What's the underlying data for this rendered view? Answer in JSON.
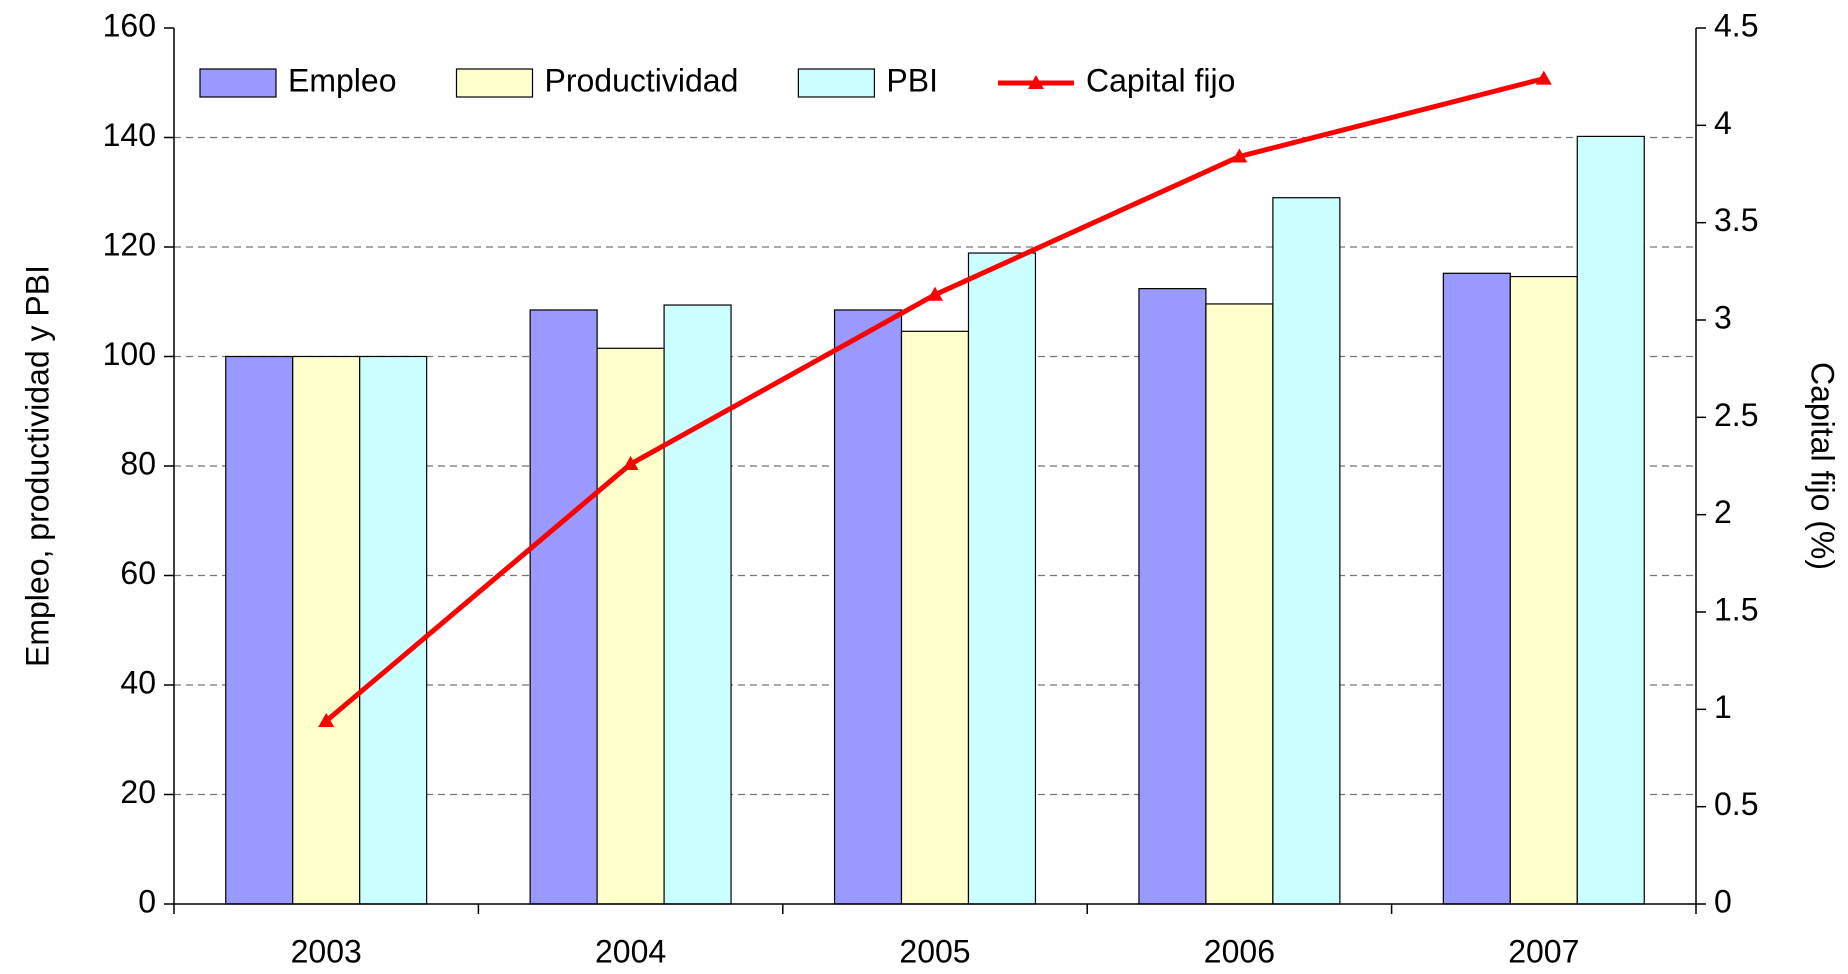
{
  "chart_data": {
    "type": "bar",
    "categories": [
      "2003",
      "2004",
      "2005",
      "2006",
      "2007"
    ],
    "series": [
      {
        "name": "Empleo",
        "color": "#9999ff",
        "values": [
          100,
          108.5,
          108.5,
          112.4,
          115.2
        ]
      },
      {
        "name": "Productividad",
        "color": "#ffffcc",
        "values": [
          100,
          101.5,
          104.6,
          109.6,
          114.6
        ]
      },
      {
        "name": "PBI",
        "color": "#ccffff",
        "values": [
          100,
          109.4,
          118.9,
          129,
          140.2
        ]
      },
      {
        "name": "Capital fijo",
        "color": "#ff0000",
        "type": "line",
        "axis": "y2",
        "values": [
          0.94,
          2.26,
          3.13,
          3.84,
          4.24
        ]
      }
    ],
    "ylabel": "Empleo, productividad y PBI",
    "y2label": "Capital fijo (%)",
    "ylim": [
      0,
      160
    ],
    "yticks": [
      0,
      20,
      40,
      60,
      80,
      100,
      120,
      140,
      160
    ],
    "y2lim": [
      0,
      4.5
    ],
    "y2ticks": [
      0,
      0.5,
      1,
      1.5,
      2,
      2.5,
      3,
      3.5,
      4,
      4.5
    ],
    "grid": true,
    "legend": "top"
  }
}
